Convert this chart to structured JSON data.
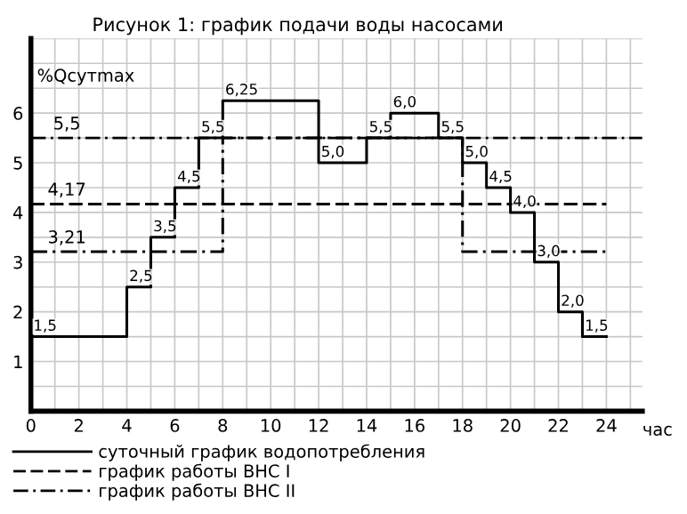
{
  "chart_data": {
    "type": "step",
    "title": "Рисунок 1: график подачи воды насосами",
    "xlabel": "час",
    "ylabel": "%Qсутmax",
    "xlim": [
      0,
      25.5
    ],
    "xticks": [
      0,
      2,
      4,
      6,
      8,
      10,
      12,
      14,
      16,
      18,
      20,
      22,
      24
    ],
    "ylim": [
      0,
      7.5
    ],
    "yticks": [
      1,
      2,
      3,
      4,
      5,
      6
    ],
    "grid": true,
    "legend": "bottom",
    "series": [
      {
        "name": "суточный график водопотребления",
        "color": "#000000",
        "line_style": "solid",
        "x": [
          0,
          4,
          5,
          6,
          7,
          8,
          12,
          14,
          15,
          17,
          18,
          19,
          20,
          21,
          22,
          23,
          24
        ],
        "values": [
          1.5,
          2.5,
          3.5,
          4.5,
          5.5,
          6.25,
          5.0,
          5.5,
          6.0,
          5.5,
          5.0,
          4.5,
          4.0,
          3.0,
          2.0,
          1.5,
          1.5
        ],
        "value_labels": [
          "1,5",
          "2,5",
          "3,5",
          "4,5",
          "5,5",
          "6,25",
          "5,0",
          "5,5",
          "6,0",
          "5,5",
          "5,0",
          "4,5",
          "4,0",
          "3,0",
          "2,0",
          "1,5",
          null
        ]
      },
      {
        "name": "график работы ВНС I",
        "color": "#000000",
        "line_style": "dashed",
        "x": [
          0,
          24
        ],
        "values": [
          4.17,
          4.17
        ]
      },
      {
        "name": "график работы ВНС II",
        "color": "#000000",
        "line_style": "dashdot",
        "x": [
          0,
          8,
          18,
          24
        ],
        "values": [
          3.21,
          5.5,
          3.21,
          3.21
        ]
      }
    ],
    "ref_lines": [
      {
        "axis": "y",
        "value": 5.5,
        "label": "5,5",
        "color": "#000000",
        "line_style": "dashdot"
      }
    ],
    "annotations": [
      {
        "text": "4,17",
        "x": 0,
        "y": 4.17
      },
      {
        "text": "3,21",
        "x": 0,
        "y": 3.21
      }
    ]
  }
}
